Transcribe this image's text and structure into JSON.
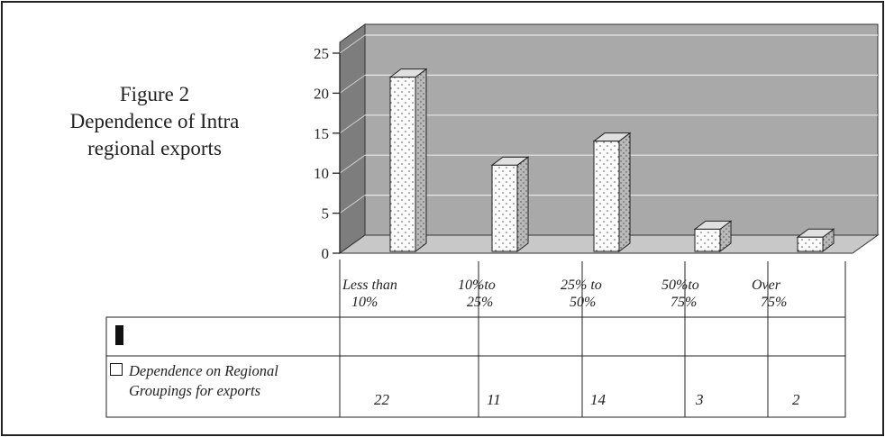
{
  "caption": {
    "line1": "Figure 2",
    "line2": "Dependence of Intra",
    "line3": "regional exports"
  },
  "chart_data": {
    "type": "bar",
    "categories": [
      [
        "Less than",
        "10%"
      ],
      [
        "10%to",
        "25%"
      ],
      [
        "25% to",
        "50%"
      ],
      [
        "50%to",
        "75%"
      ],
      [
        "Over",
        "75%"
      ]
    ],
    "series": [
      {
        "name": "Dependence on Regional Groupings for exports",
        "values": [
          22,
          11,
          14,
          3,
          2
        ]
      }
    ],
    "yticks": [
      "0",
      "5",
      "10",
      "15",
      "20",
      "25"
    ],
    "ylim": [
      0,
      25
    ],
    "grid": true,
    "style": "3d",
    "colors": {
      "wall": "#a9a9a9",
      "floor": "#c8c8c8",
      "bar_front": "#fafafa",
      "bar_side": "#b8b8b8",
      "bar_top": "#e0e0e0"
    }
  },
  "legend": {
    "series_label_line1": "Dependence on Regional",
    "series_label_line2": "Groupings for exports"
  },
  "table_values": [
    "22",
    "11",
    "14",
    "3",
    "2"
  ]
}
